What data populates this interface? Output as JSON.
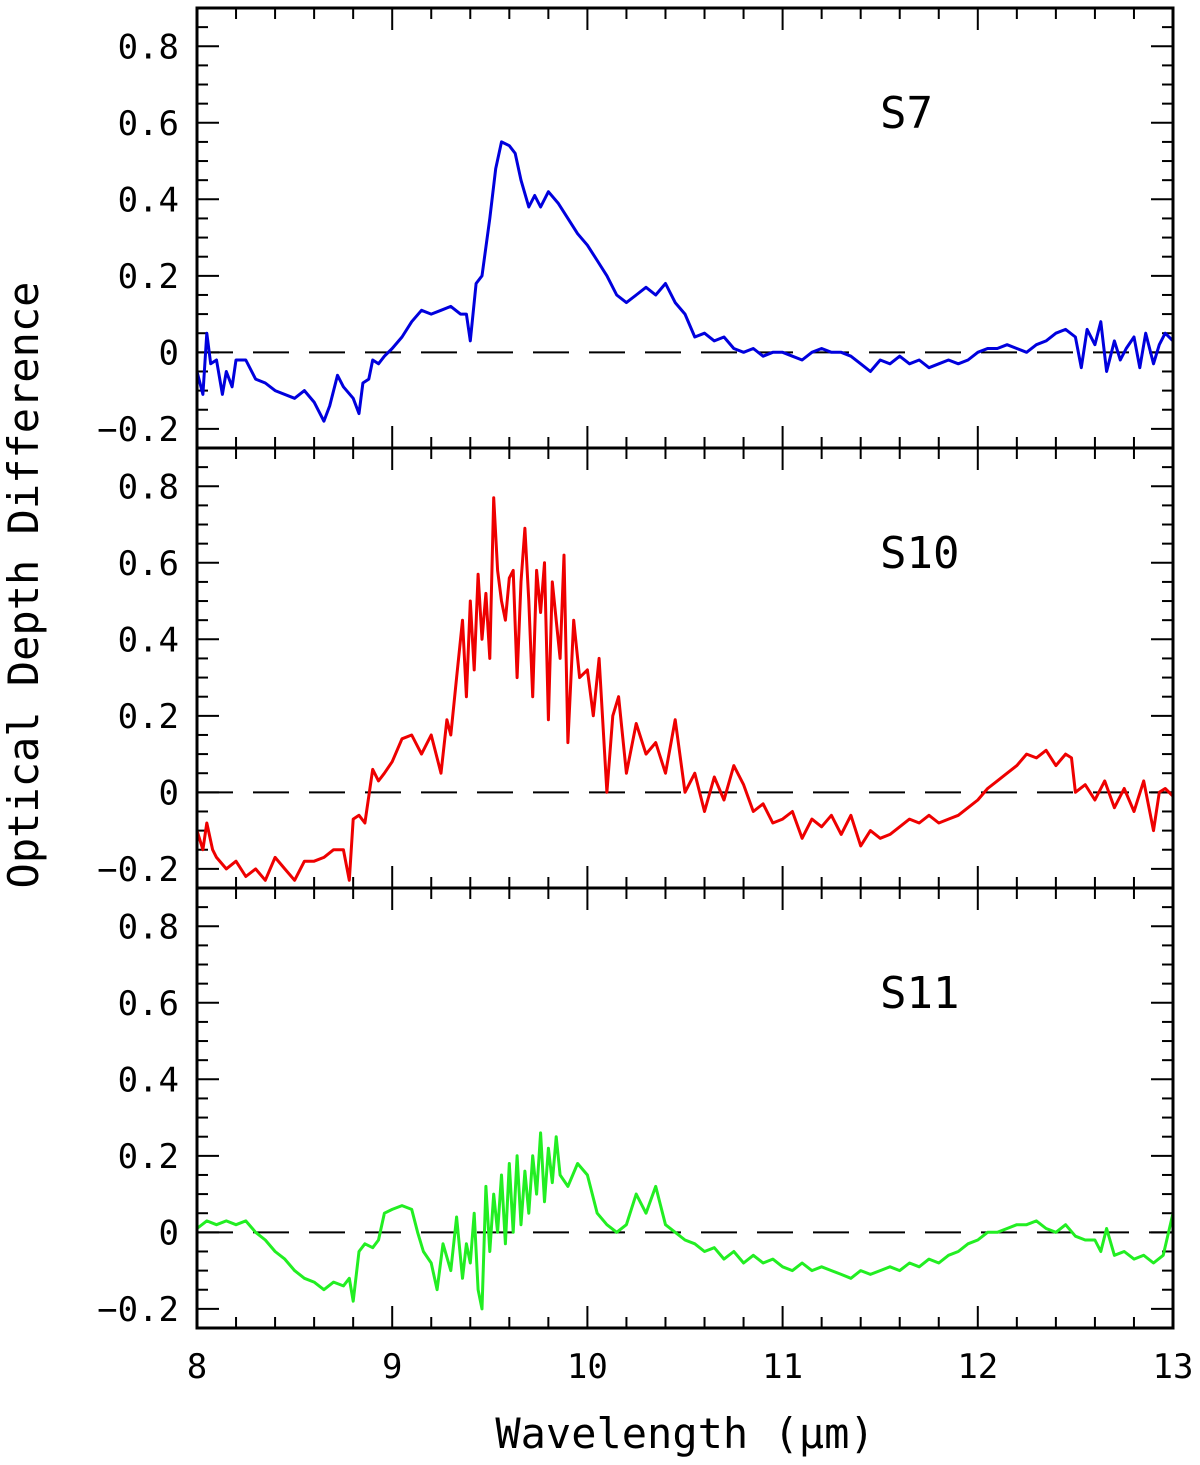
{
  "figure": {
    "ylabel": "Optical Depth Difference",
    "xlabel": "Wavelength (μm)"
  },
  "chart_data": [
    {
      "type": "line",
      "label": "S7",
      "color": "#0000dd",
      "xlim": [
        8,
        13
      ],
      "ylim": [
        -0.25,
        0.9
      ],
      "xticks": [
        8,
        9,
        10,
        11,
        12,
        13
      ],
      "yticks": [
        -0.2,
        0,
        0.2,
        0.4,
        0.6,
        0.8
      ],
      "ytick_labels": [
        "−0.2",
        "0",
        "0.2",
        "0.4",
        "0.6",
        "0.8"
      ],
      "reference_line": 0,
      "x": [
        8.0,
        8.03,
        8.05,
        8.07,
        8.1,
        8.13,
        8.15,
        8.18,
        8.2,
        8.25,
        8.3,
        8.35,
        8.4,
        8.5,
        8.55,
        8.6,
        8.65,
        8.68,
        8.72,
        8.75,
        8.8,
        8.83,
        8.85,
        8.88,
        8.9,
        8.93,
        8.96,
        9.0,
        9.05,
        9.1,
        9.15,
        9.2,
        9.25,
        9.3,
        9.35,
        9.38,
        9.4,
        9.43,
        9.46,
        9.5,
        9.53,
        9.56,
        9.6,
        9.63,
        9.66,
        9.7,
        9.73,
        9.76,
        9.8,
        9.85,
        9.9,
        9.95,
        10.0,
        10.05,
        10.1,
        10.15,
        10.2,
        10.25,
        10.3,
        10.35,
        10.4,
        10.45,
        10.5,
        10.55,
        10.6,
        10.65,
        10.7,
        10.75,
        10.8,
        10.85,
        10.9,
        10.95,
        11.0,
        11.05,
        11.1,
        11.15,
        11.2,
        11.25,
        11.3,
        11.35,
        11.4,
        11.45,
        11.5,
        11.55,
        11.6,
        11.65,
        11.7,
        11.75,
        11.8,
        11.85,
        11.9,
        11.95,
        12.0,
        12.05,
        12.1,
        12.15,
        12.2,
        12.25,
        12.3,
        12.35,
        12.4,
        12.45,
        12.5,
        12.53,
        12.56,
        12.6,
        12.63,
        12.66,
        12.7,
        12.73,
        12.76,
        12.8,
        12.83,
        12.86,
        12.9,
        12.93,
        12.96,
        13.0
      ],
      "y": [
        -0.05,
        -0.11,
        0.05,
        -0.03,
        -0.02,
        -0.11,
        -0.05,
        -0.09,
        -0.02,
        -0.02,
        -0.07,
        -0.08,
        -0.1,
        -0.12,
        -0.1,
        -0.13,
        -0.18,
        -0.14,
        -0.06,
        -0.09,
        -0.12,
        -0.16,
        -0.08,
        -0.07,
        -0.02,
        -0.03,
        -0.01,
        0.01,
        0.04,
        0.08,
        0.11,
        0.1,
        0.11,
        0.12,
        0.1,
        0.1,
        0.03,
        0.18,
        0.2,
        0.35,
        0.48,
        0.55,
        0.54,
        0.52,
        0.45,
        0.38,
        0.41,
        0.38,
        0.42,
        0.39,
        0.35,
        0.31,
        0.28,
        0.24,
        0.2,
        0.15,
        0.13,
        0.15,
        0.17,
        0.15,
        0.18,
        0.13,
        0.1,
        0.04,
        0.05,
        0.03,
        0.04,
        0.01,
        0.0,
        0.01,
        -0.01,
        0.0,
        0.0,
        -0.01,
        -0.02,
        0.0,
        0.01,
        0.0,
        0.0,
        -0.01,
        -0.03,
        -0.05,
        -0.02,
        -0.03,
        -0.01,
        -0.03,
        -0.02,
        -0.04,
        -0.03,
        -0.02,
        -0.03,
        -0.02,
        0.0,
        0.01,
        0.01,
        0.02,
        0.01,
        0.0,
        0.02,
        0.03,
        0.05,
        0.06,
        0.04,
        -0.04,
        0.06,
        0.02,
        0.08,
        -0.05,
        0.03,
        -0.02,
        0.01,
        0.04,
        -0.04,
        0.05,
        -0.03,
        0.02,
        0.05,
        0.03
      ]
    },
    {
      "type": "line",
      "label": "S10",
      "color": "#ee0000",
      "xlim": [
        8,
        13
      ],
      "ylim": [
        -0.25,
        0.9
      ],
      "xticks": [
        8,
        9,
        10,
        11,
        12,
        13
      ],
      "yticks": [
        -0.2,
        0,
        0.2,
        0.4,
        0.6,
        0.8
      ],
      "ytick_labels": [
        "−0.2",
        "0",
        "0.2",
        "0.4",
        "0.6",
        "0.8"
      ],
      "reference_line": 0,
      "x": [
        8.0,
        8.03,
        8.05,
        8.08,
        8.1,
        8.15,
        8.2,
        8.25,
        8.3,
        8.35,
        8.4,
        8.45,
        8.5,
        8.55,
        8.6,
        8.65,
        8.7,
        8.75,
        8.78,
        8.8,
        8.83,
        8.86,
        8.9,
        8.93,
        8.96,
        9.0,
        9.05,
        9.1,
        9.15,
        9.2,
        9.25,
        9.28,
        9.3,
        9.33,
        9.36,
        9.38,
        9.4,
        9.42,
        9.44,
        9.46,
        9.48,
        9.5,
        9.52,
        9.54,
        9.56,
        9.58,
        9.6,
        9.62,
        9.64,
        9.66,
        9.68,
        9.7,
        9.72,
        9.74,
        9.76,
        9.78,
        9.8,
        9.82,
        9.84,
        9.86,
        9.88,
        9.9,
        9.93,
        9.96,
        10.0,
        10.03,
        10.06,
        10.1,
        10.13,
        10.16,
        10.2,
        10.25,
        10.3,
        10.35,
        10.4,
        10.45,
        10.5,
        10.55,
        10.6,
        10.65,
        10.7,
        10.75,
        10.8,
        10.85,
        10.9,
        10.95,
        11.0,
        11.05,
        11.1,
        11.15,
        11.2,
        11.25,
        11.3,
        11.35,
        11.4,
        11.45,
        11.5,
        11.55,
        11.6,
        11.65,
        11.7,
        11.75,
        11.8,
        11.85,
        11.9,
        11.95,
        12.0,
        12.05,
        12.1,
        12.15,
        12.2,
        12.25,
        12.3,
        12.35,
        12.4,
        12.45,
        12.48,
        12.5,
        12.55,
        12.6,
        12.65,
        12.7,
        12.75,
        12.8,
        12.85,
        12.9,
        12.93,
        12.96,
        13.0
      ],
      "y": [
        -0.1,
        -0.15,
        -0.08,
        -0.15,
        -0.17,
        -0.2,
        -0.18,
        -0.22,
        -0.2,
        -0.23,
        -0.17,
        -0.2,
        -0.23,
        -0.18,
        -0.18,
        -0.17,
        -0.15,
        -0.15,
        -0.23,
        -0.07,
        -0.06,
        -0.08,
        0.06,
        0.03,
        0.05,
        0.08,
        0.14,
        0.15,
        0.1,
        0.15,
        0.05,
        0.19,
        0.15,
        0.3,
        0.45,
        0.25,
        0.5,
        0.32,
        0.57,
        0.4,
        0.52,
        0.35,
        0.77,
        0.58,
        0.5,
        0.45,
        0.56,
        0.58,
        0.3,
        0.55,
        0.69,
        0.5,
        0.25,
        0.58,
        0.47,
        0.6,
        0.19,
        0.55,
        0.45,
        0.35,
        0.62,
        0.13,
        0.45,
        0.3,
        0.32,
        0.2,
        0.35,
        0.0,
        0.2,
        0.25,
        0.05,
        0.18,
        0.1,
        0.13,
        0.05,
        0.19,
        0.0,
        0.05,
        -0.05,
        0.04,
        -0.02,
        0.07,
        0.02,
        -0.05,
        -0.03,
        -0.08,
        -0.07,
        -0.05,
        -0.12,
        -0.07,
        -0.09,
        -0.06,
        -0.11,
        -0.06,
        -0.14,
        -0.1,
        -0.12,
        -0.11,
        -0.09,
        -0.07,
        -0.08,
        -0.06,
        -0.08,
        -0.07,
        -0.06,
        -0.04,
        -0.02,
        0.01,
        0.03,
        0.05,
        0.07,
        0.1,
        0.09,
        0.11,
        0.07,
        0.1,
        0.09,
        0.0,
        0.02,
        -0.02,
        0.03,
        -0.04,
        0.01,
        -0.05,
        0.03,
        -0.1,
        0.0,
        0.01,
        -0.01
      ]
    },
    {
      "type": "line",
      "label": "S11",
      "color": "#22ee22",
      "xlim": [
        8,
        13
      ],
      "ylim": [
        -0.25,
        0.9
      ],
      "xticks": [
        8,
        9,
        10,
        11,
        12,
        13
      ],
      "xtick_labels": [
        "8",
        "9",
        "10",
        "11",
        "12",
        "13"
      ],
      "yticks": [
        -0.2,
        0,
        0.2,
        0.4,
        0.6,
        0.8
      ],
      "ytick_labels": [
        "−0.2",
        "0",
        "0.2",
        "0.4",
        "0.6",
        "0.8"
      ],
      "reference_line": 0,
      "x": [
        8.0,
        8.05,
        8.1,
        8.15,
        8.2,
        8.25,
        8.3,
        8.35,
        8.4,
        8.45,
        8.5,
        8.55,
        8.6,
        8.65,
        8.7,
        8.75,
        8.78,
        8.8,
        8.83,
        8.86,
        8.9,
        8.93,
        8.96,
        9.0,
        9.05,
        9.1,
        9.13,
        9.16,
        9.2,
        9.23,
        9.26,
        9.3,
        9.33,
        9.36,
        9.38,
        9.4,
        9.42,
        9.44,
        9.46,
        9.48,
        9.5,
        9.52,
        9.54,
        9.56,
        9.58,
        9.6,
        9.62,
        9.64,
        9.66,
        9.68,
        9.7,
        9.72,
        9.74,
        9.76,
        9.78,
        9.8,
        9.82,
        9.84,
        9.86,
        9.9,
        9.95,
        10.0,
        10.05,
        10.1,
        10.15,
        10.2,
        10.25,
        10.3,
        10.35,
        10.4,
        10.45,
        10.5,
        10.55,
        10.6,
        10.65,
        10.7,
        10.75,
        10.8,
        10.85,
        10.9,
        10.95,
        11.0,
        11.05,
        11.1,
        11.15,
        11.2,
        11.25,
        11.3,
        11.35,
        11.4,
        11.45,
        11.5,
        11.55,
        11.6,
        11.65,
        11.7,
        11.75,
        11.8,
        11.85,
        11.9,
        11.95,
        12.0,
        12.05,
        12.1,
        12.15,
        12.2,
        12.25,
        12.3,
        12.35,
        12.4,
        12.45,
        12.5,
        12.55,
        12.6,
        12.63,
        12.66,
        12.7,
        12.75,
        12.8,
        12.85,
        12.9,
        12.95,
        13.0
      ],
      "y": [
        0.01,
        0.03,
        0.02,
        0.03,
        0.02,
        0.03,
        0.0,
        -0.02,
        -0.05,
        -0.07,
        -0.1,
        -0.12,
        -0.13,
        -0.15,
        -0.13,
        -0.14,
        -0.12,
        -0.18,
        -0.05,
        -0.03,
        -0.04,
        -0.02,
        0.05,
        0.06,
        0.07,
        0.06,
        0.0,
        -0.05,
        -0.08,
        -0.15,
        -0.03,
        -0.1,
        0.04,
        -0.12,
        -0.03,
        -0.08,
        0.05,
        -0.15,
        -0.2,
        0.12,
        -0.05,
        0.1,
        0.0,
        0.15,
        -0.03,
        0.18,
        0.0,
        0.2,
        0.02,
        0.16,
        0.05,
        0.2,
        0.1,
        0.26,
        0.08,
        0.22,
        0.13,
        0.25,
        0.15,
        0.12,
        0.18,
        0.15,
        0.05,
        0.02,
        0.0,
        0.02,
        0.1,
        0.05,
        0.12,
        0.02,
        0.0,
        -0.02,
        -0.03,
        -0.05,
        -0.04,
        -0.07,
        -0.05,
        -0.08,
        -0.06,
        -0.08,
        -0.07,
        -0.09,
        -0.1,
        -0.08,
        -0.1,
        -0.09,
        -0.1,
        -0.11,
        -0.12,
        -0.1,
        -0.11,
        -0.1,
        -0.09,
        -0.1,
        -0.08,
        -0.09,
        -0.07,
        -0.08,
        -0.06,
        -0.05,
        -0.03,
        -0.02,
        0.0,
        0.0,
        0.01,
        0.02,
        0.02,
        0.03,
        0.01,
        0.0,
        0.02,
        -0.01,
        -0.02,
        -0.02,
        -0.05,
        0.01,
        -0.06,
        -0.05,
        -0.07,
        -0.06,
        -0.08,
        -0.06,
        0.05
      ]
    }
  ]
}
